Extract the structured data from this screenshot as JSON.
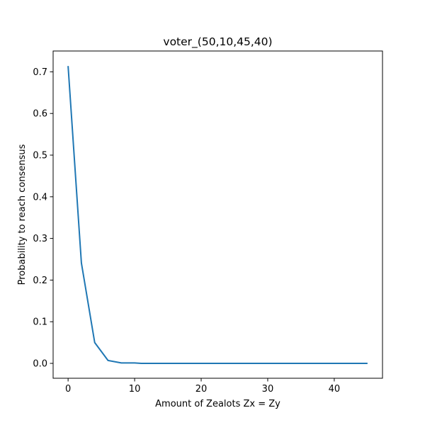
{
  "chart_data": {
    "type": "line",
    "title": "voter_(50,10,45,40)",
    "xlabel": "Amount of Zealots Zx = Zy",
    "ylabel": "Probability to reach consensus",
    "xlim": [
      -2.25,
      47.25
    ],
    "ylim": [
      -0.0357,
      0.75
    ],
    "xticks": [
      0,
      10,
      20,
      30,
      40
    ],
    "xtick_labels": [
      "0",
      "10",
      "20",
      "30",
      "40"
    ],
    "yticks": [
      0.0,
      0.1,
      0.2,
      0.3,
      0.4,
      0.5,
      0.6,
      0.7
    ],
    "ytick_labels": [
      "0.0",
      "0.1",
      "0.2",
      "0.3",
      "0.4",
      "0.5",
      "0.6",
      "0.7"
    ],
    "grid": false,
    "series": [
      {
        "color": "#1f77b4",
        "x": [
          0,
          2,
          4,
          6,
          8,
          10,
          11,
          15,
          20,
          25,
          30,
          35,
          40,
          45
        ],
        "y": [
          0.714,
          0.241,
          0.05,
          0.007,
          0.001,
          0.001,
          0.0,
          0.0,
          0.0,
          0.0,
          0.0,
          0.0,
          0.0,
          0.0
        ]
      }
    ]
  }
}
